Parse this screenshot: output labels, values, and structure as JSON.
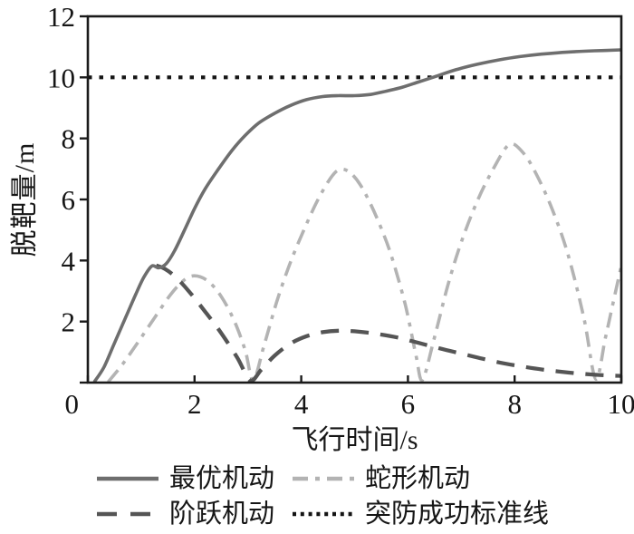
{
  "figure_caption": "",
  "axes": {
    "ylabel": "脱靶量/m",
    "xlabel": "飞行时间/s"
  },
  "colors": {
    "axis": "#1a1a1a",
    "text": "#161616",
    "optimal": "#6e6e6e",
    "step": "#555555",
    "serpentine": "#b3b3b3",
    "threshold": "#141414",
    "background": "#ffffff"
  },
  "legend": {
    "items": [
      {
        "label": "最优机动",
        "style": "solid",
        "color": "#6e6e6e"
      },
      {
        "label": "阶跃机动",
        "style": "dashed",
        "color": "#555555"
      },
      {
        "label": "蛇形机动",
        "style": "dashdot",
        "color": "#b3b3b3"
      },
      {
        "label": "突防成功标准线",
        "style": "dotted",
        "color": "#141414"
      }
    ]
  },
  "chart_data": {
    "type": "line",
    "title": "",
    "xlabel": "飞行时间/s",
    "ylabel": "脱靶量/m",
    "xlim": [
      0,
      10
    ],
    "ylim": [
      0,
      12
    ],
    "x_ticks": [
      0,
      2,
      4,
      6,
      8,
      10
    ],
    "y_ticks": [
      0,
      2,
      4,
      6,
      8,
      10,
      12
    ],
    "grid": false,
    "legend_position": "bottom",
    "series": [
      {
        "name": "最优机动",
        "style": "solid",
        "color": "#6e6e6e",
        "width": 3.6,
        "points": [
          [
            0.12,
            0.02
          ],
          [
            0.3,
            0.5
          ],
          [
            0.5,
            1.3
          ],
          [
            0.7,
            2.1
          ],
          [
            0.9,
            2.9
          ],
          [
            1.05,
            3.45
          ],
          [
            1.2,
            3.82
          ],
          [
            1.33,
            3.76
          ],
          [
            1.47,
            3.9
          ],
          [
            1.62,
            4.3
          ],
          [
            1.8,
            4.95
          ],
          [
            2.0,
            5.7
          ],
          [
            2.2,
            6.35
          ],
          [
            2.45,
            7.0
          ],
          [
            2.7,
            7.6
          ],
          [
            2.95,
            8.1
          ],
          [
            3.2,
            8.5
          ],
          [
            3.5,
            8.82
          ],
          [
            3.8,
            9.08
          ],
          [
            4.1,
            9.27
          ],
          [
            4.4,
            9.37
          ],
          [
            4.7,
            9.4
          ],
          [
            5.0,
            9.4
          ],
          [
            5.3,
            9.44
          ],
          [
            5.6,
            9.55
          ],
          [
            5.9,
            9.68
          ],
          [
            6.2,
            9.85
          ],
          [
            6.5,
            10.02
          ],
          [
            6.9,
            10.25
          ],
          [
            7.3,
            10.43
          ],
          [
            7.7,
            10.57
          ],
          [
            8.1,
            10.68
          ],
          [
            8.5,
            10.76
          ],
          [
            9.0,
            10.83
          ],
          [
            9.5,
            10.87
          ],
          [
            10,
            10.9
          ]
        ]
      },
      {
        "name": "阶跃机动",
        "style": "dashed",
        "color": "#555555",
        "width": 4.3,
        "points": [
          [
            1.28,
            3.84
          ],
          [
            1.45,
            3.72
          ],
          [
            1.65,
            3.45
          ],
          [
            1.9,
            2.98
          ],
          [
            2.2,
            2.32
          ],
          [
            2.5,
            1.62
          ],
          [
            2.8,
            0.82
          ],
          [
            3.05,
            0.06
          ],
          [
            3.25,
            0.42
          ],
          [
            3.5,
            0.88
          ],
          [
            3.8,
            1.28
          ],
          [
            4.1,
            1.52
          ],
          [
            4.4,
            1.65
          ],
          [
            4.7,
            1.7
          ],
          [
            5.0,
            1.68
          ],
          [
            5.4,
            1.6
          ],
          [
            5.8,
            1.48
          ],
          [
            6.2,
            1.3
          ],
          [
            6.6,
            1.12
          ],
          [
            7.0,
            0.95
          ],
          [
            7.4,
            0.78
          ],
          [
            7.8,
            0.63
          ],
          [
            8.2,
            0.51
          ],
          [
            8.6,
            0.41
          ],
          [
            9.0,
            0.33
          ],
          [
            9.4,
            0.27
          ],
          [
            9.8,
            0.23
          ],
          [
            10,
            0.22
          ]
        ]
      },
      {
        "name": "蛇形机动",
        "style": "dashdot",
        "color": "#b3b3b3",
        "width": 3.6,
        "points": [
          [
            0.38,
            0.02
          ],
          [
            0.65,
            0.6
          ],
          [
            0.95,
            1.35
          ],
          [
            1.25,
            2.12
          ],
          [
            1.55,
            2.88
          ],
          [
            1.8,
            3.35
          ],
          [
            2.0,
            3.5
          ],
          [
            2.25,
            3.33
          ],
          [
            2.5,
            2.82
          ],
          [
            2.75,
            2.0
          ],
          [
            2.95,
            1.05
          ],
          [
            3.1,
            0.08
          ],
          [
            3.3,
            1.2
          ],
          [
            3.55,
            2.7
          ],
          [
            3.8,
            3.95
          ],
          [
            4.05,
            5.0
          ],
          [
            4.3,
            5.95
          ],
          [
            4.55,
            6.7
          ],
          [
            4.72,
            6.98
          ],
          [
            4.9,
            6.9
          ],
          [
            5.1,
            6.5
          ],
          [
            5.3,
            5.85
          ],
          [
            5.5,
            5.05
          ],
          [
            5.7,
            4.1
          ],
          [
            5.95,
            2.55
          ],
          [
            6.15,
            0.9
          ],
          [
            6.27,
            0.08
          ],
          [
            6.5,
            1.5
          ],
          [
            6.75,
            3.2
          ],
          [
            7.0,
            4.6
          ],
          [
            7.3,
            5.95
          ],
          [
            7.6,
            7.0
          ],
          [
            7.9,
            7.8
          ],
          [
            8.15,
            7.55
          ],
          [
            8.4,
            6.85
          ],
          [
            8.7,
            5.7
          ],
          [
            9.0,
            4.2
          ],
          [
            9.3,
            2.1
          ],
          [
            9.52,
            0.12
          ],
          [
            9.7,
            1.45
          ],
          [
            9.85,
            2.65
          ],
          [
            10,
            3.82
          ]
        ]
      },
      {
        "name": "突防成功标准线",
        "style": "dotted",
        "color": "#141414",
        "width": 4.2,
        "points": [
          [
            0,
            10
          ],
          [
            10,
            10
          ]
        ]
      }
    ]
  }
}
